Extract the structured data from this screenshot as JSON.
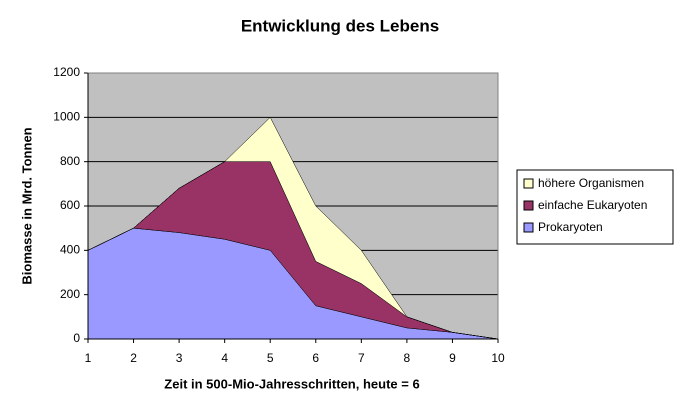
{
  "chart_data": {
    "type": "stacked_area",
    "title": "Entwicklung des Lebens",
    "x_label": "Zeit in 500-Mio-Jahresschritten, heute = 6",
    "y_label": "Biomasse in Mrd. Tonnen",
    "x": [
      1,
      2,
      3,
      4,
      5,
      6,
      7,
      8,
      9,
      10
    ],
    "series": [
      {
        "name": "Prokaryoten",
        "color": "#9999ff",
        "values": [
          400,
          500,
          480,
          450,
          400,
          150,
          100,
          50,
          30,
          0
        ]
      },
      {
        "name": "einfache Eukaryoten",
        "color": "#993366",
        "values": [
          0,
          0,
          200,
          350,
          400,
          200,
          150,
          50,
          0,
          0
        ]
      },
      {
        "name": "höhere Organismen",
        "color": "#ffffcc",
        "values": [
          0,
          0,
          0,
          0,
          200,
          250,
          150,
          0,
          0,
          0
        ]
      }
    ],
    "xlim": [
      1,
      10
    ],
    "xticks": [
      1,
      2,
      3,
      4,
      5,
      6,
      7,
      8,
      9,
      10
    ],
    "ylim": [
      0,
      1200
    ],
    "yticks": [
      0,
      200,
      400,
      600,
      800,
      1000,
      1200
    ],
    "grid": true,
    "legend": "right",
    "plot_background": "#c0c0c0"
  }
}
